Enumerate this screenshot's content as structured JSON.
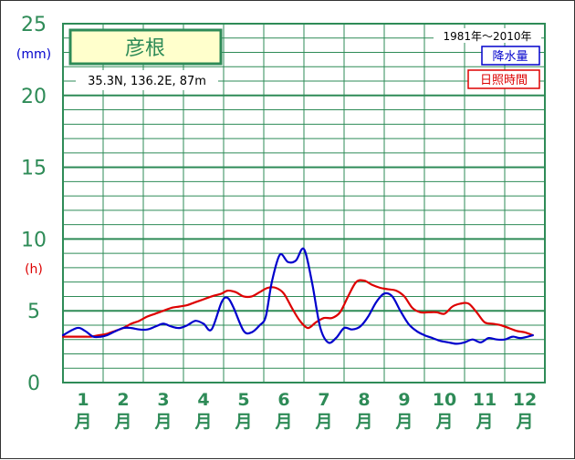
{
  "chart_data": {
    "type": "line",
    "title": "彦根",
    "location": "35.3N,  136.2E,  87m",
    "period": "1981年〜2010年",
    "y_unit_precip": "(mm)",
    "y_unit_sun": "(h)",
    "ylim": [
      0,
      25
    ],
    "y_ticks": [
      "0",
      "5",
      "10",
      "15",
      "20",
      "25"
    ],
    "x_label_suffix": "月",
    "categories": [
      "1",
      "2",
      "3",
      "4",
      "5",
      "6",
      "7",
      "8",
      "9",
      "10",
      "11",
      "12"
    ],
    "legend_position": "top-right",
    "series": [
      {
        "name": "降水量",
        "color": "#0000cc",
        "x": [
          0.5,
          0.85,
          1.05,
          1.25,
          1.45,
          1.6,
          1.75,
          2.0,
          2.2,
          2.4,
          2.6,
          2.8,
          3.0,
          3.2,
          3.4,
          3.6,
          3.8,
          4.0,
          4.2,
          4.45,
          4.6,
          4.75,
          5.0,
          5.2,
          5.4,
          5.55,
          5.7,
          5.9,
          6.1,
          6.3,
          6.5,
          6.7,
          6.9,
          7.1,
          7.3,
          7.5,
          7.7,
          7.9,
          8.1,
          8.3,
          8.5,
          8.7,
          8.9,
          9.1,
          9.3,
          9.5,
          9.7,
          9.9,
          10.1,
          10.3,
          10.5,
          10.7,
          10.9,
          11.1,
          11.3,
          11.5,
          11.7,
          11.9,
          12.2
        ],
        "values": [
          3.3,
          3.8,
          3.6,
          3.2,
          3.2,
          3.3,
          3.5,
          3.8,
          3.8,
          3.7,
          3.7,
          3.9,
          4.1,
          3.9,
          3.8,
          4.0,
          4.3,
          4.1,
          3.7,
          5.6,
          5.9,
          5.2,
          3.6,
          3.5,
          4.0,
          4.6,
          7.0,
          8.9,
          8.4,
          8.5,
          9.3,
          7.0,
          3.9,
          2.8,
          3.1,
          3.8,
          3.7,
          3.9,
          4.6,
          5.6,
          6.2,
          6.0,
          5.0,
          4.1,
          3.6,
          3.3,
          3.1,
          2.9,
          2.8,
          2.7,
          2.8,
          3.0,
          2.8,
          3.1,
          3.0,
          3.0,
          3.2,
          3.1,
          3.3
        ]
      },
      {
        "name": "日照時間",
        "color": "#dd0000",
        "x": [
          0.5,
          0.8,
          1.0,
          1.2,
          1.4,
          1.6,
          1.8,
          2.0,
          2.2,
          2.4,
          2.6,
          2.8,
          3.0,
          3.2,
          3.4,
          3.6,
          3.8,
          4.0,
          4.2,
          4.45,
          4.6,
          4.8,
          5.0,
          5.2,
          5.4,
          5.6,
          5.8,
          6.0,
          6.2,
          6.4,
          6.6,
          6.8,
          7.0,
          7.2,
          7.4,
          7.6,
          7.8,
          8.0,
          8.2,
          8.4,
          8.6,
          8.8,
          9.0,
          9.2,
          9.4,
          9.6,
          9.8,
          10.0,
          10.2,
          10.4,
          10.6,
          10.8,
          11.0,
          11.2,
          11.4,
          11.6,
          11.8,
          12.0,
          12.2
        ],
        "values": [
          3.2,
          3.2,
          3.2,
          3.2,
          3.3,
          3.4,
          3.6,
          3.8,
          4.1,
          4.3,
          4.6,
          4.8,
          5.0,
          5.2,
          5.3,
          5.4,
          5.6,
          5.8,
          6.0,
          6.2,
          6.4,
          6.3,
          6.0,
          6.0,
          6.3,
          6.6,
          6.6,
          6.2,
          5.2,
          4.3,
          3.8,
          4.2,
          4.5,
          4.5,
          4.9,
          6.0,
          7.0,
          7.1,
          6.8,
          6.6,
          6.5,
          6.4,
          6.0,
          5.2,
          4.9,
          4.9,
          4.9,
          4.8,
          5.3,
          5.5,
          5.5,
          4.9,
          4.2,
          4.1,
          4.0,
          3.8,
          3.6,
          3.5,
          3.3
        ]
      }
    ]
  }
}
